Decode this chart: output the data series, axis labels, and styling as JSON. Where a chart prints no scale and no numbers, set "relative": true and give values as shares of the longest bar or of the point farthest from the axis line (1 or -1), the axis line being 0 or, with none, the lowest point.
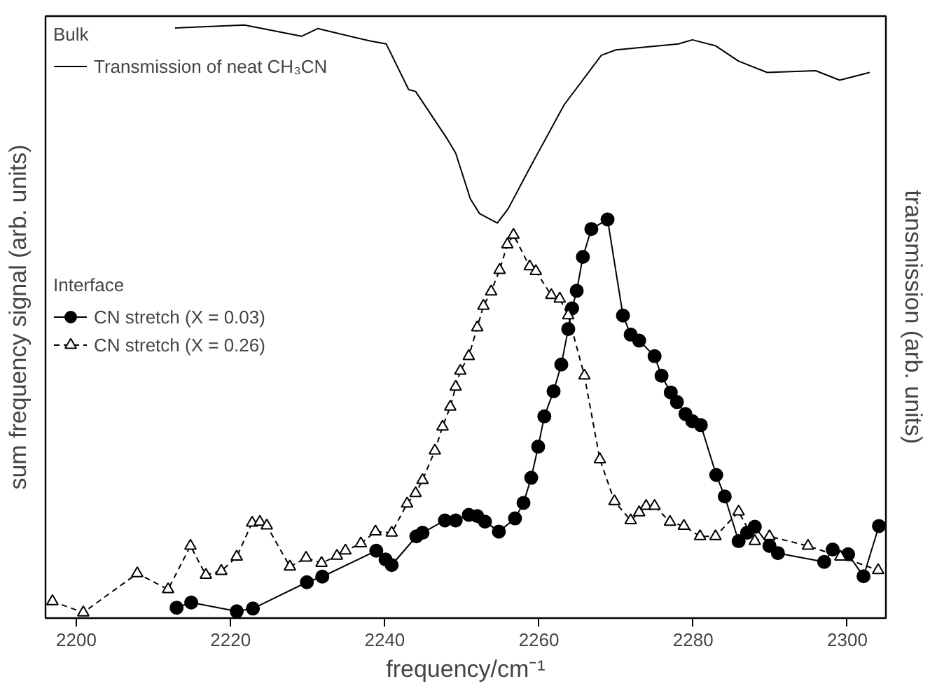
{
  "chart_data": {
    "type": "line",
    "relative": true,
    "xlabel": "frequency/cm⁻¹",
    "ylabel": "sum frequency signal (arb. units)",
    "y2label": "transmission (arb. units)",
    "xlim": [
      2196,
      2305
    ],
    "xticks": [
      2200,
      2220,
      2240,
      2260,
      2280,
      2300
    ],
    "grid": false,
    "legend": "left",
    "annotations": [
      "Bulk",
      "Interface"
    ],
    "series": [
      {
        "name": "Transmission of neat CH₃CN",
        "color": "#000000",
        "axis": "y2",
        "marker": "none",
        "line_style": "solid",
        "x": [
          2212.8,
          2221.8,
          2229.2,
          2231.3,
          2238.1,
          2240.2,
          2243.1,
          2244.0,
          2248.1,
          2249.2,
          2251.1,
          2252.3,
          2254.6,
          2256.0,
          2259.1,
          2262.5,
          2263.3,
          2268.1,
          2270.0,
          2278.1,
          2279.9,
          2282.9,
          2285.9,
          2289.6,
          2295.9,
          2299.0,
          2302.9
        ],
        "values": [
          0.995,
          1.0,
          0.981,
          0.994,
          0.973,
          0.968,
          0.891,
          0.888,
          0.808,
          0.784,
          0.707,
          0.682,
          0.666,
          0.69,
          0.766,
          0.847,
          0.866,
          0.949,
          0.958,
          0.968,
          0.975,
          0.965,
          0.939,
          0.92,
          0.923,
          0.907,
          0.92
        ]
      },
      {
        "name": "CN stretch (X = 0.03)",
        "color": "#000000",
        "marker": "circle",
        "line_style": "solid",
        "x": [
          2213.0,
          2214.9,
          2220.8,
          2222.9,
          2229.9,
          2231.9,
          2238.9,
          2240.1,
          2240.9,
          2244.1,
          2244.9,
          2247.8,
          2249.2,
          2250.9,
          2252.0,
          2253.0,
          2254.8,
          2256.9,
          2258.0,
          2259.0,
          2259.9,
          2260.7,
          2261.9,
          2262.9,
          2263.8,
          2264.3,
          2264.9,
          2265.7,
          2266.8,
          2268.9,
          2270.9,
          2271.9,
          2273.0,
          2275.0,
          2275.9,
          2277.1,
          2277.9,
          2279.0,
          2279.9,
          2281.0,
          2283.0,
          2284.1,
          2285.9,
          2287.0,
          2288.0,
          2289.9,
          2291.0,
          2297.0,
          2298.1,
          2300.1,
          2302.1,
          2304.1
        ],
        "values": [
          0.026,
          0.039,
          0.017,
          0.024,
          0.09,
          0.104,
          0.169,
          0.147,
          0.133,
          0.205,
          0.214,
          0.245,
          0.245,
          0.259,
          0.256,
          0.242,
          0.217,
          0.25,
          0.289,
          0.352,
          0.43,
          0.506,
          0.569,
          0.636,
          0.725,
          0.777,
          0.821,
          0.906,
          0.976,
          1.0,
          0.759,
          0.711,
          0.696,
          0.657,
          0.608,
          0.566,
          0.542,
          0.512,
          0.494,
          0.484,
          0.359,
          0.305,
          0.193,
          0.214,
          0.229,
          0.181,
          0.163,
          0.141,
          0.172,
          0.16,
          0.105,
          0.231
        ]
      },
      {
        "name": "CN stretch (X = 0.26)",
        "color": "#000000",
        "marker": "triangle",
        "line_style": "dashed",
        "x": [
          2196.9,
          2200.9,
          2207.9,
          2211.9,
          2214.8,
          2216.8,
          2218.8,
          2220.8,
          2222.8,
          2223.8,
          2224.7,
          2227.7,
          2229.8,
          2231.8,
          2233.8,
          2234.9,
          2236.9,
          2238.8,
          2240.9,
          2242.9,
          2244.0,
          2244.9,
          2246.5,
          2247.5,
          2248.5,
          2249.2,
          2249.8,
          2250.9,
          2252.0,
          2252.8,
          2253.8,
          2254.9,
          2255.9,
          2256.7,
          2258.8,
          2259.6,
          2261.6,
          2262.7,
          2263.8,
          2265.9,
          2267.9,
          2269.8,
          2271.9,
          2273.0,
          2273.9,
          2275.0,
          2277.0,
          2278.8,
          2280.9,
          2282.9,
          2285.9,
          2288.0,
          2289.9,
          2294.9,
          2299.1,
          2304.0
        ],
        "values": [
          0.042,
          0.014,
          0.112,
          0.072,
          0.181,
          0.108,
          0.118,
          0.154,
          0.239,
          0.241,
          0.232,
          0.129,
          0.151,
          0.138,
          0.156,
          0.169,
          0.187,
          0.217,
          0.214,
          0.287,
          0.313,
          0.346,
          0.42,
          0.48,
          0.53,
          0.58,
          0.62,
          0.657,
          0.729,
          0.783,
          0.819,
          0.873,
          0.937,
          0.961,
          0.882,
          0.87,
          0.81,
          0.801,
          0.759,
          0.608,
          0.398,
          0.293,
          0.245,
          0.265,
          0.281,
          0.281,
          0.241,
          0.231,
          0.205,
          0.205,
          0.267,
          0.193,
          0.205,
          0.181,
          0.154,
          0.12
        ]
      }
    ]
  }
}
